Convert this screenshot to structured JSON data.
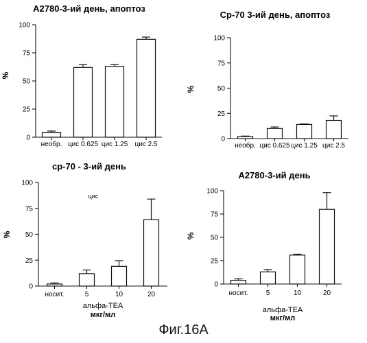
{
  "chart_data": [
    {
      "type": "bar",
      "title": "A2780-3-ий день, апоптоз",
      "ylabel": "%",
      "xlabel": "",
      "xlabel2": "",
      "note": "",
      "categories": [
        "необр.",
        "цис 0.625",
        "цис 1.25",
        "цис 2.5"
      ],
      "values": [
        4,
        62,
        63,
        87
      ],
      "errors": [
        1.5,
        2.5,
        1.5,
        2
      ],
      "ylim": [
        0,
        100
      ],
      "yticks": [
        0,
        25,
        50,
        75,
        100
      ],
      "grid": false
    },
    {
      "type": "bar",
      "title": "Ср-70 3-ий день, апоптоз",
      "ylabel": "%",
      "xlabel": "",
      "xlabel2": "",
      "note": "",
      "categories": [
        "необр.",
        "цис 0.625",
        "цис 1.25",
        "цис 2.5"
      ],
      "values": [
        2,
        10,
        14,
        18
      ],
      "errors": [
        0.5,
        1.5,
        0.5,
        4.5
      ],
      "ylim": [
        0,
        100
      ],
      "yticks": [
        0,
        25,
        50,
        75,
        100
      ],
      "grid": false
    },
    {
      "type": "bar",
      "title": "ср-70 - 3-ий день",
      "ylabel": "%",
      "xlabel": "альфа-TEA",
      "xlabel2": "мкг/мл",
      "note": "цис",
      "categories": [
        "носит.",
        "5",
        "10",
        "20"
      ],
      "values": [
        2,
        12,
        19,
        64
      ],
      "errors": [
        1,
        3.5,
        5.5,
        20
      ],
      "ylim": [
        0,
        100
      ],
      "yticks": [
        0,
        25,
        50,
        75,
        100
      ],
      "grid": false
    },
    {
      "type": "bar",
      "title": "A2780-3-ий день",
      "ylabel": "%",
      "xlabel": "альфа-TEA",
      "xlabel2": "мкг/мл",
      "note": "",
      "categories": [
        "носит.",
        "5",
        "10",
        "20"
      ],
      "values": [
        4,
        13,
        31,
        80
      ],
      "errors": [
        1.5,
        2.5,
        1,
        18
      ],
      "ylim": [
        0,
        100
      ],
      "yticks": [
        0,
        25,
        50,
        75,
        100
      ],
      "grid": false
    }
  ],
  "caption": "Фиг.16A"
}
